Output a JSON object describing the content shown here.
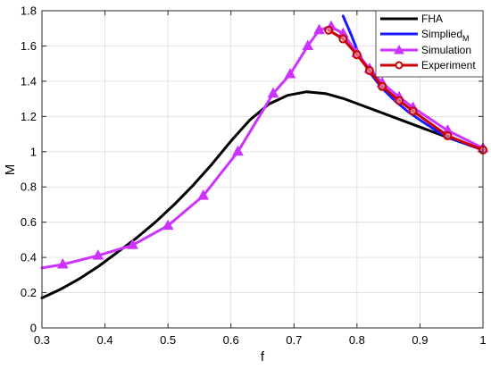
{
  "chart_data": {
    "type": "line",
    "title": "",
    "xlabel": "f",
    "ylabel": "M",
    "xlim": [
      0.3,
      1.0
    ],
    "ylim": [
      0,
      1.8
    ],
    "xticks": [
      "0.3",
      "0.4",
      "0.5",
      "0.6",
      "0.7",
      "0.8",
      "0.9",
      "1"
    ],
    "yticks": [
      "0",
      "0.2",
      "0.4",
      "0.6",
      "0.8",
      "1",
      "1.2",
      "1.4",
      "1.6",
      "1.8"
    ],
    "grid": true,
    "legend_position": "top-right",
    "series": [
      {
        "name": "FHA",
        "color": "#000000",
        "marker": "none",
        "x": [
          0.3,
          0.33,
          0.36,
          0.39,
          0.42,
          0.45,
          0.48,
          0.51,
          0.54,
          0.57,
          0.6,
          0.63,
          0.66,
          0.69,
          0.72,
          0.75,
          0.78,
          0.81,
          0.84,
          0.87,
          0.9,
          0.93,
          0.96,
          1.0
        ],
        "y": [
          0.17,
          0.22,
          0.28,
          0.35,
          0.43,
          0.51,
          0.6,
          0.7,
          0.81,
          0.93,
          1.06,
          1.18,
          1.27,
          1.32,
          1.34,
          1.33,
          1.3,
          1.26,
          1.22,
          1.18,
          1.14,
          1.1,
          1.06,
          1.01
        ]
      },
      {
        "name": "Simplied",
        "name_sub": "M",
        "color": "#1a1aff",
        "marker": "none",
        "x": [
          0.778,
          0.79,
          0.8,
          0.81,
          0.82,
          0.84,
          0.86,
          0.88,
          0.9,
          0.93,
          0.96,
          1.0
        ],
        "y": [
          1.77,
          1.67,
          1.58,
          1.51,
          1.45,
          1.36,
          1.29,
          1.23,
          1.18,
          1.11,
          1.06,
          1.01
        ]
      },
      {
        "name": "Simulation",
        "color": "#cc33ff",
        "marker": "triangle",
        "x": [
          0.3,
          0.333,
          0.389,
          0.444,
          0.5,
          0.556,
          0.611,
          0.667,
          0.694,
          0.722,
          0.74,
          0.759,
          0.778,
          0.8,
          0.82,
          0.84,
          0.867,
          0.889,
          0.944,
          1.0
        ],
        "y": [
          0.34,
          0.36,
          0.41,
          0.47,
          0.58,
          0.75,
          1.0,
          1.33,
          1.44,
          1.6,
          1.69,
          1.71,
          1.67,
          1.56,
          1.47,
          1.39,
          1.31,
          1.25,
          1.12,
          1.02
        ]
      },
      {
        "name": "Experiment",
        "color": "#cc0000",
        "marker": "circle",
        "x": [
          0.755,
          0.778,
          0.8,
          0.82,
          0.84,
          0.867,
          0.889,
          0.944,
          1.0
        ],
        "y": [
          1.69,
          1.64,
          1.55,
          1.46,
          1.37,
          1.29,
          1.23,
          1.09,
          1.01
        ]
      }
    ]
  }
}
